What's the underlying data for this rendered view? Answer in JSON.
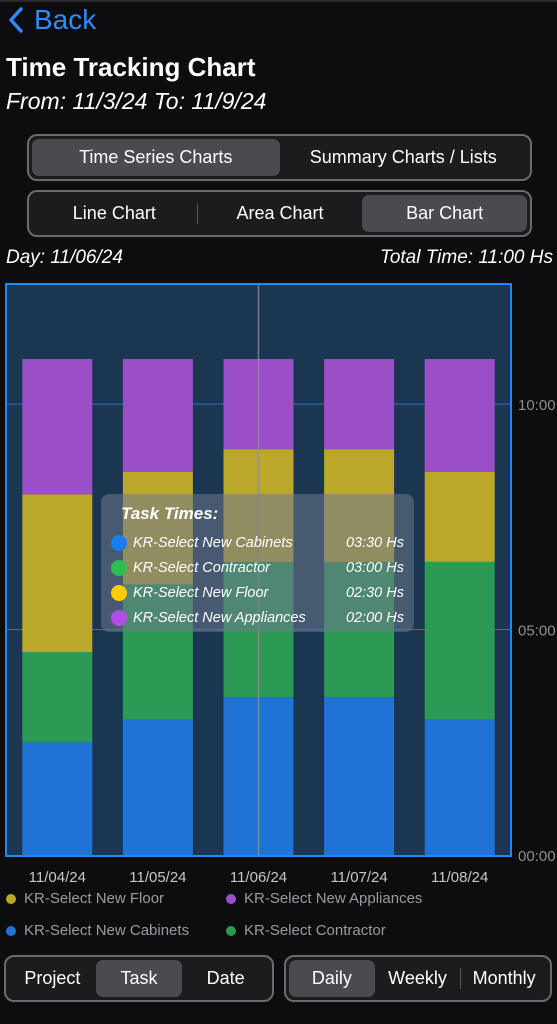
{
  "nav": {
    "back_label": "Back"
  },
  "header": {
    "title": "Time Tracking Chart",
    "range": "From: 11/3/24 To: 11/9/24"
  },
  "chart_mode_tabs": [
    {
      "label": "Time Series Charts",
      "active": true
    },
    {
      "label": "Summary Charts / Lists",
      "active": false
    }
  ],
  "chart_type_tabs": [
    {
      "label": "Line Chart",
      "active": false
    },
    {
      "label": "Area Chart",
      "active": false
    },
    {
      "label": "Bar Chart",
      "active": true
    }
  ],
  "selection": {
    "day": "Day: 11/06/24",
    "total": "Total Time: 11:00 Hs"
  },
  "tooltip": {
    "title": "Task Times:",
    "rows": [
      {
        "name": "KR-Select New Cabinets",
        "value": "03:30 Hs",
        "color": "#1a7cf0"
      },
      {
        "name": "KR-Select Contractor",
        "value": "03:00 Hs",
        "color": "#2ebd55"
      },
      {
        "name": "KR-Select New Floor",
        "value": "02:30 Hs",
        "color": "#ffcc00"
      },
      {
        "name": "KR-Select New Appliances",
        "value": "02:00 Hs",
        "color": "#b14ee8"
      }
    ]
  },
  "legend": [
    {
      "label": "KR-Select New Floor",
      "color": "#bba82a"
    },
    {
      "label": "KR-Select New Appliances",
      "color": "#9a4fc6"
    },
    {
      "label": "KR-Select New Cabinets",
      "color": "#1f73d6"
    },
    {
      "label": "KR-Select Contractor",
      "color": "#2a9a55"
    }
  ],
  "group_by_tabs": [
    {
      "label": "Project",
      "active": false
    },
    {
      "label": "Task",
      "active": true
    },
    {
      "label": "Date",
      "active": false
    }
  ],
  "period_tabs": [
    {
      "label": "Daily",
      "active": true
    },
    {
      "label": "Weekly",
      "active": false
    },
    {
      "label": "Monthly",
      "active": false
    }
  ],
  "chart_data": {
    "type": "bar",
    "stacked": true,
    "categories": [
      "11/04/24",
      "11/05/24",
      "11/06/24",
      "11/07/24",
      "11/08/24"
    ],
    "y_ticks": [
      "00:00",
      "05:00",
      "10:00"
    ],
    "ylim": [
      0,
      11
    ],
    "selected_category": "11/06/24",
    "series": [
      {
        "name": "KR-Select New Cabinets",
        "color": "#1f73d6",
        "values": [
          2.5,
          3.0,
          3.5,
          3.5,
          3.0
        ]
      },
      {
        "name": "KR-Select Contractor",
        "color": "#2a9a55",
        "values": [
          2.0,
          3.0,
          3.0,
          3.0,
          3.5
        ]
      },
      {
        "name": "KR-Select New Floor",
        "color": "#bba82a",
        "values": [
          3.5,
          2.5,
          2.5,
          2.5,
          2.0
        ]
      },
      {
        "name": "KR-Select New Appliances",
        "color": "#9a4fc6",
        "values": [
          3.0,
          2.5,
          2.0,
          2.0,
          2.5
        ]
      }
    ]
  }
}
